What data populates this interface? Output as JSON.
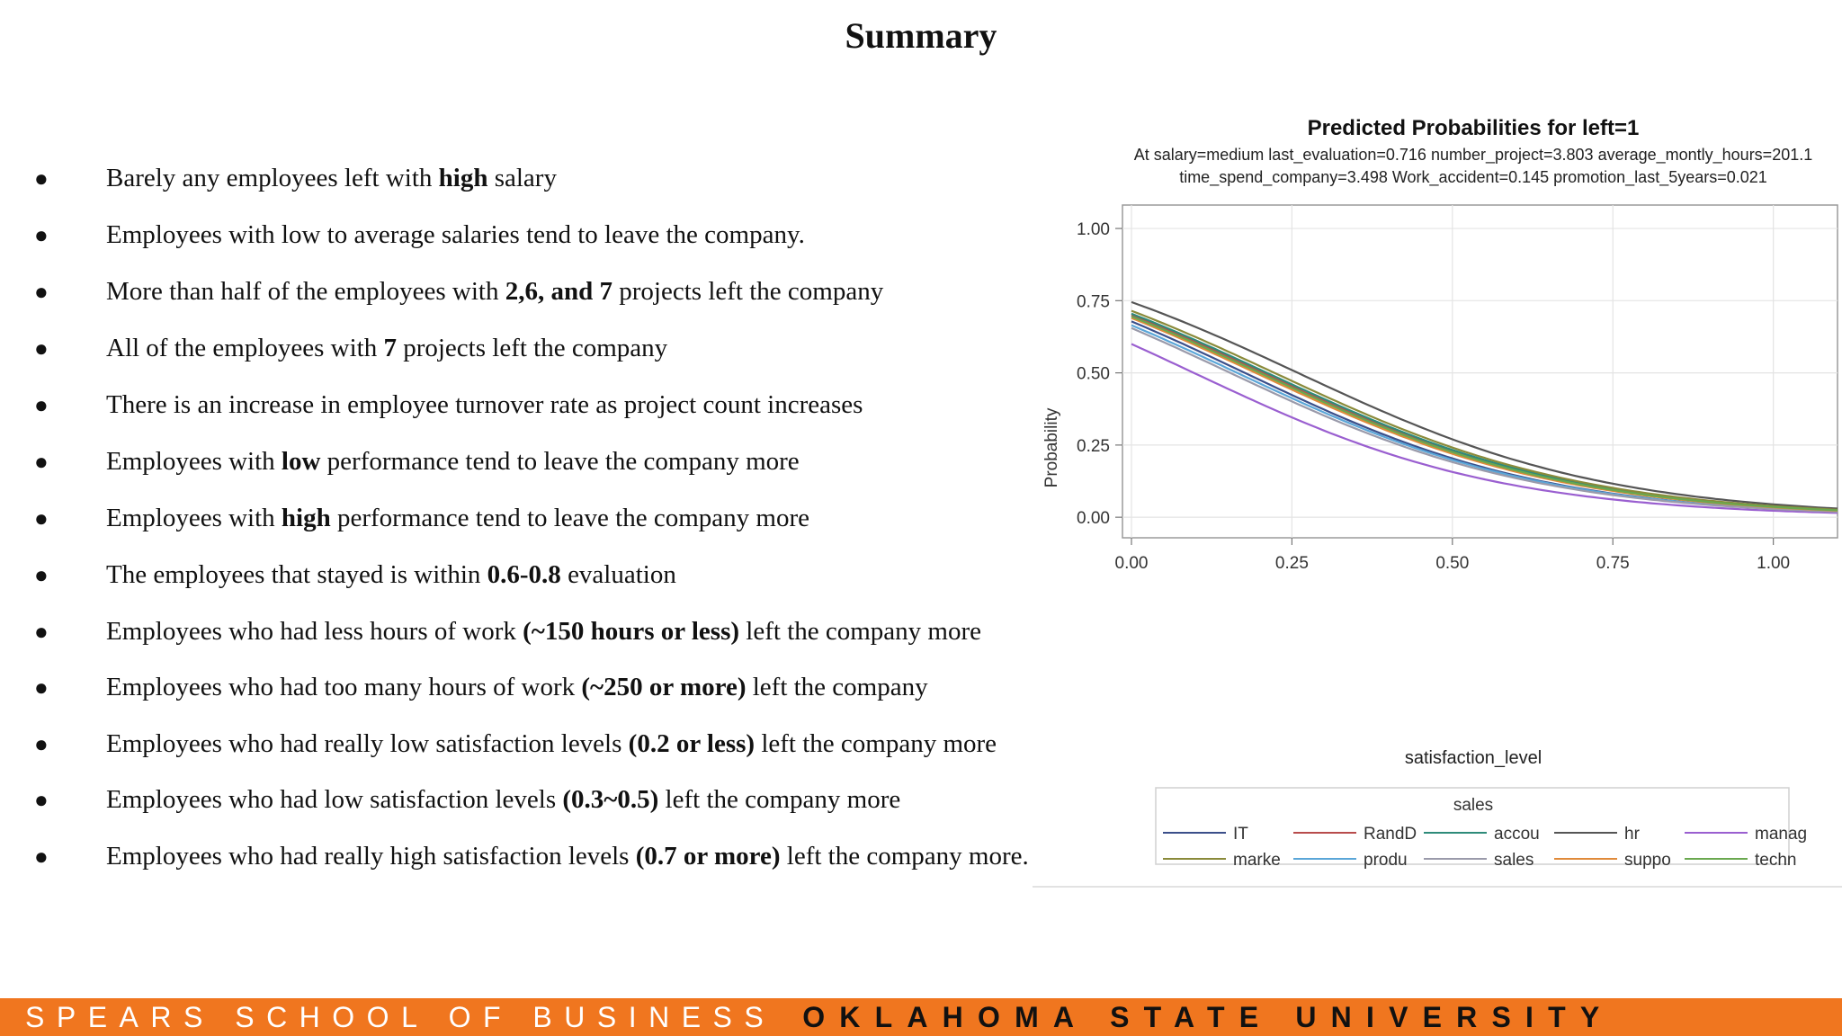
{
  "slide": {
    "title": "Summary",
    "bullets": [
      [
        {
          "t": "Barely any employees left with "
        },
        {
          "t": "high",
          "b": true
        },
        {
          "t": " salary"
        }
      ],
      [
        {
          "t": "Employees with low to average salaries tend to leave the company."
        }
      ],
      [
        {
          "t": "More than half of the employees with "
        },
        {
          "t": "2,6, and 7",
          "b": true
        },
        {
          "t": " projects left the company"
        }
      ],
      [
        {
          "t": "All of the employees with "
        },
        {
          "t": "7",
          "b": true
        },
        {
          "t": " projects left the company"
        }
      ],
      [
        {
          "t": "There is an increase in employee turnover rate as project count increases"
        }
      ],
      [
        {
          "t": "Employees with "
        },
        {
          "t": "low",
          "b": true
        },
        {
          "t": " performance tend to leave the company more"
        }
      ],
      [
        {
          "t": "Employees with "
        },
        {
          "t": "high",
          "b": true
        },
        {
          "t": " performance tend to leave the company more"
        }
      ],
      [
        {
          "t": "The employees that stayed is within "
        },
        {
          "t": "0.6-0.8",
          "b": true
        },
        {
          "t": " evaluation"
        }
      ],
      [
        {
          "t": "Employees who had less hours of work "
        },
        {
          "t": "(~150 hours or less)",
          "b": true
        },
        {
          "t": " left the company more"
        }
      ],
      [
        {
          "t": "Employees who had too many hours of work "
        },
        {
          "t": "(~250 or more)",
          "b": true
        },
        {
          "t": " left the company"
        }
      ],
      [
        {
          "t": "Employees who had really low satisfaction levels "
        },
        {
          "t": "(0.2 or less)",
          "b": true
        },
        {
          "t": " left the company more"
        }
      ],
      [
        {
          "t": "Employees who had low satisfaction levels "
        },
        {
          "t": "(0.3~0.5)",
          "b": true
        },
        {
          "t": " left the company more"
        }
      ],
      [
        {
          "t": "Employees who had really high satisfaction levels "
        },
        {
          "t": "(0.7 or more)",
          "b": true
        },
        {
          "t": " left the company more."
        }
      ]
    ]
  },
  "footer": {
    "school": "SPEARS SCHOOL OF BUSINESS",
    "university": "OKLAHOMA STATE UNIVERSITY",
    "bar_color": "#f0761f"
  },
  "chart_data": {
    "type": "line",
    "title": "Predicted Probabilities for left=1",
    "subtitle_lines": [
      "At salary=medium last_evaluation=0.716 number_project=3.803 average_montly_hours=201.1",
      "time_spend_company=3.498 Work_accident=0.145 promotion_last_5years=0.021"
    ],
    "xlabel": "satisfaction_level",
    "ylabel": "Probability",
    "xlim": [
      0,
      1.1
    ],
    "ylim": [
      -0.04,
      1.05
    ],
    "xticks": [
      "0.00",
      "0.25",
      "0.50",
      "0.75",
      "1.00"
    ],
    "yticks": [
      "0.00",
      "0.25",
      "0.50",
      "0.75",
      "1.00"
    ],
    "grid": true,
    "legend_title": "sales",
    "legend_position": "bottom",
    "x_range": [
      0,
      1.1
    ],
    "series": [
      {
        "name": "IT",
        "color": "#3b4f8a",
        "start": 0.678,
        "end": 0.02
      },
      {
        "name": "RandD",
        "color": "#b84c4c",
        "start": 0.7,
        "end": 0.024
      },
      {
        "name": "accou",
        "color": "#2e8b7a",
        "start": 0.705,
        "end": 0.025
      },
      {
        "name": "hr",
        "color": "#555555",
        "start": 0.745,
        "end": 0.03
      },
      {
        "name": "manag",
        "color": "#9a5fd0",
        "start": 0.6,
        "end": 0.015
      },
      {
        "name": "marke",
        "color": "#8a8a3a",
        "start": 0.715,
        "end": 0.026
      },
      {
        "name": "produ",
        "color": "#5aa6d8",
        "start": 0.665,
        "end": 0.02
      },
      {
        "name": "sales",
        "color": "#9a9aaa",
        "start": 0.655,
        "end": 0.019
      },
      {
        "name": "suppo",
        "color": "#e08a3a",
        "start": 0.69,
        "end": 0.023
      },
      {
        "name": "techn",
        "color": "#6aa84f",
        "start": 0.695,
        "end": 0.024
      }
    ]
  }
}
